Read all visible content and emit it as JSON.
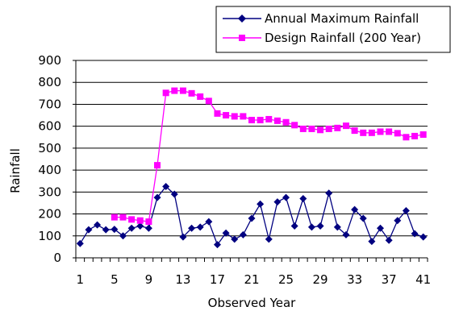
{
  "chart_data": {
    "type": "line",
    "xlabel": "Observed Year",
    "ylabel": "Rainfall",
    "ylim": [
      0,
      900
    ],
    "yticks": [
      0,
      100,
      200,
      300,
      400,
      500,
      600,
      700,
      800,
      900
    ],
    "xlim": [
      1,
      41
    ],
    "xticks": [
      1,
      5,
      9,
      13,
      17,
      21,
      25,
      29,
      33,
      37,
      41
    ],
    "grid": "horizontal",
    "legend_position": "top-right",
    "series": [
      {
        "name": "Annual Maximum Rainfall",
        "color": "#000080",
        "marker": "diamond",
        "x": [
          1,
          2,
          3,
          4,
          5,
          6,
          7,
          8,
          9,
          10,
          11,
          12,
          13,
          14,
          15,
          16,
          17,
          18,
          19,
          20,
          21,
          22,
          23,
          24,
          25,
          26,
          27,
          28,
          29,
          30,
          31,
          32,
          33,
          34,
          35,
          36,
          37,
          38,
          39,
          40,
          41
        ],
        "values": [
          65,
          128,
          150,
          128,
          130,
          100,
          135,
          145,
          135,
          275,
          325,
          290,
          95,
          135,
          140,
          165,
          60,
          113,
          85,
          105,
          180,
          245,
          85,
          255,
          275,
          145,
          270,
          140,
          145,
          295,
          140,
          105,
          220,
          180,
          75,
          135,
          80,
          170,
          215,
          110,
          95
        ]
      },
      {
        "name": "Design Rainfall (200 Year)",
        "color": "#ff00ff",
        "marker": "square",
        "x": [
          5,
          6,
          7,
          8,
          9,
          10,
          11,
          12,
          13,
          14,
          15,
          16,
          17,
          18,
          19,
          20,
          21,
          22,
          23,
          24,
          25,
          26,
          27,
          28,
          29,
          30,
          31,
          32,
          33,
          34,
          35,
          36,
          37,
          38,
          39,
          40,
          41
        ],
        "values": [
          185,
          185,
          175,
          170,
          165,
          422,
          752,
          762,
          762,
          750,
          735,
          715,
          658,
          650,
          645,
          645,
          628,
          628,
          632,
          625,
          618,
          605,
          588,
          588,
          583,
          588,
          592,
          602,
          580,
          570,
          570,
          575,
          575,
          568,
          550,
          555,
          562
        ]
      }
    ]
  }
}
